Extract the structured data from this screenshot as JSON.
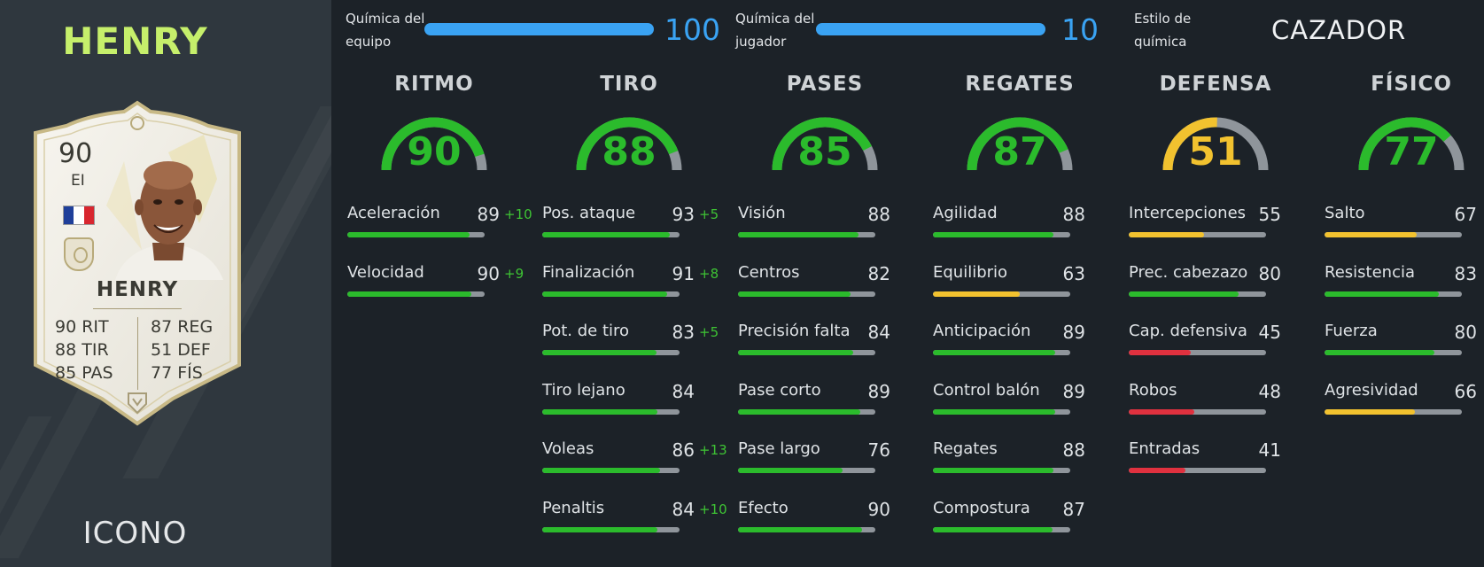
{
  "player": {
    "name": "HENRY",
    "card_type_label": "ICONO",
    "card": {
      "rating": "90",
      "position": "EI",
      "name": "HENRY",
      "stats_left": [
        {
          "value": "90",
          "label": "RIT"
        },
        {
          "value": "88",
          "label": "TIR"
        },
        {
          "value": "85",
          "label": "PAS"
        }
      ],
      "stats_right": [
        {
          "value": "87",
          "label": "REG"
        },
        {
          "value": "51",
          "label": "DEF"
        },
        {
          "value": "77",
          "label": "FÍS"
        }
      ],
      "flag_colors": [
        "#1f3f9a",
        "#ffffff",
        "#d8262f"
      ]
    }
  },
  "chemistry": {
    "team": {
      "label_line1": "Química del",
      "label_line2": "equipo",
      "value": "100"
    },
    "player": {
      "label_line1": "Química del",
      "label_line2": "jugador",
      "value": "10"
    },
    "style": {
      "label_line1": "Estilo de",
      "label_line2": "química",
      "value": "CAZADOR"
    }
  },
  "colors": {
    "green": "#2bbb2c",
    "yellow": "#f2c22f",
    "red": "#e0313f",
    "blue": "#3aa3f3",
    "track": "#8f959b"
  },
  "categories": [
    {
      "title": "RITMO",
      "value": 90,
      "stats": [
        {
          "name": "Aceleración",
          "value": 89,
          "boost": "+10"
        },
        {
          "name": "Velocidad",
          "value": 90,
          "boost": "+9"
        }
      ]
    },
    {
      "title": "TIRO",
      "value": 88,
      "stats": [
        {
          "name": "Pos. ataque",
          "value": 93,
          "boost": "+5"
        },
        {
          "name": "Finalización",
          "value": 91,
          "boost": "+8"
        },
        {
          "name": "Pot. de tiro",
          "value": 83,
          "boost": "+5"
        },
        {
          "name": "Tiro lejano",
          "value": 84,
          "boost": ""
        },
        {
          "name": "Voleas",
          "value": 86,
          "boost": "+13"
        },
        {
          "name": "Penaltis",
          "value": 84,
          "boost": "+10"
        }
      ]
    },
    {
      "title": "PASES",
      "value": 85,
      "stats": [
        {
          "name": "Visión",
          "value": 88,
          "boost": ""
        },
        {
          "name": "Centros",
          "value": 82,
          "boost": ""
        },
        {
          "name": "Precisión falta",
          "value": 84,
          "boost": ""
        },
        {
          "name": "Pase corto",
          "value": 89,
          "boost": ""
        },
        {
          "name": "Pase largo",
          "value": 76,
          "boost": ""
        },
        {
          "name": "Efecto",
          "value": 90,
          "boost": ""
        }
      ]
    },
    {
      "title": "REGATES",
      "value": 87,
      "stats": [
        {
          "name": "Agilidad",
          "value": 88,
          "boost": ""
        },
        {
          "name": "Equilibrio",
          "value": 63,
          "boost": ""
        },
        {
          "name": "Anticipación",
          "value": 89,
          "boost": ""
        },
        {
          "name": "Control balón",
          "value": 89,
          "boost": ""
        },
        {
          "name": "Regates",
          "value": 88,
          "boost": ""
        },
        {
          "name": "Compostura",
          "value": 87,
          "boost": ""
        }
      ]
    },
    {
      "title": "DEFENSA",
      "value": 51,
      "stats": [
        {
          "name": "Intercepciones",
          "value": 55,
          "boost": ""
        },
        {
          "name": "Prec. cabezazo",
          "value": 80,
          "boost": ""
        },
        {
          "name": "Cap. defensiva",
          "value": 45,
          "boost": ""
        },
        {
          "name": "Robos",
          "value": 48,
          "boost": ""
        },
        {
          "name": "Entradas",
          "value": 41,
          "boost": ""
        }
      ]
    },
    {
      "title": "FÍSICO",
      "value": 77,
      "stats": [
        {
          "name": "Salto",
          "value": 67,
          "boost": ""
        },
        {
          "name": "Resistencia",
          "value": 83,
          "boost": ""
        },
        {
          "name": "Fuerza",
          "value": 80,
          "boost": ""
        },
        {
          "name": "Agresividad",
          "value": 66,
          "boost": ""
        }
      ]
    }
  ]
}
